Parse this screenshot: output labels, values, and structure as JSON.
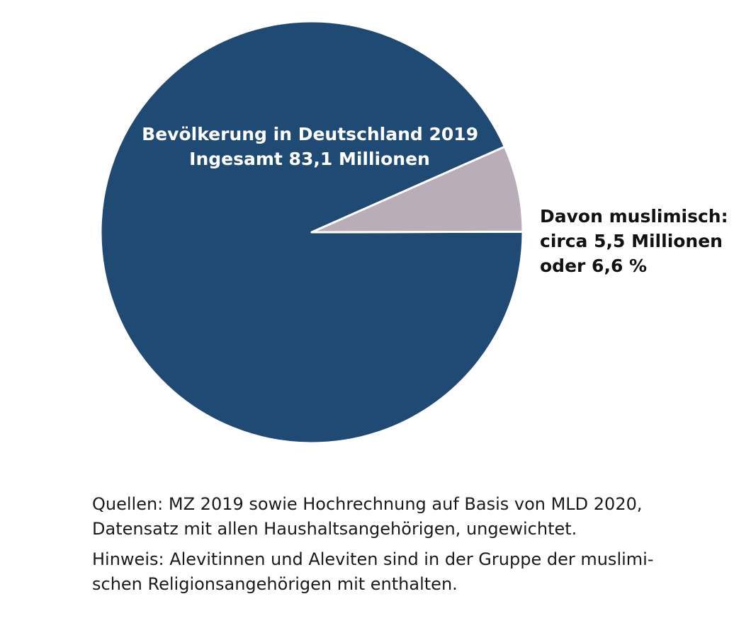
{
  "chart_data": {
    "type": "pie",
    "slices": [
      {
        "label_lines": [
          "Bevölkerung in Deutschland 2019",
          "Ingesamt 83,1 Millionen"
        ],
        "value": 93.4,
        "color": "#1f4a73"
      },
      {
        "label_lines": [
          "Davon muslimisch:",
          "circa 5,5 Millionen",
          "oder 6,6 %"
        ],
        "value": 6.6,
        "color": "#b8adb9"
      }
    ]
  },
  "notes": {
    "source": "Quellen: MZ 2019 sowie Hochrechnung auf Basis von MLD 2020,\nDatensatz mit allen Haushaltsangehörigen, ungewichtet.",
    "hint": "Hinweis: Alevitinnen und Aleviten sind in der Gruppe der muslimi-\nschen Religionsangehörigen mit enthalten."
  }
}
